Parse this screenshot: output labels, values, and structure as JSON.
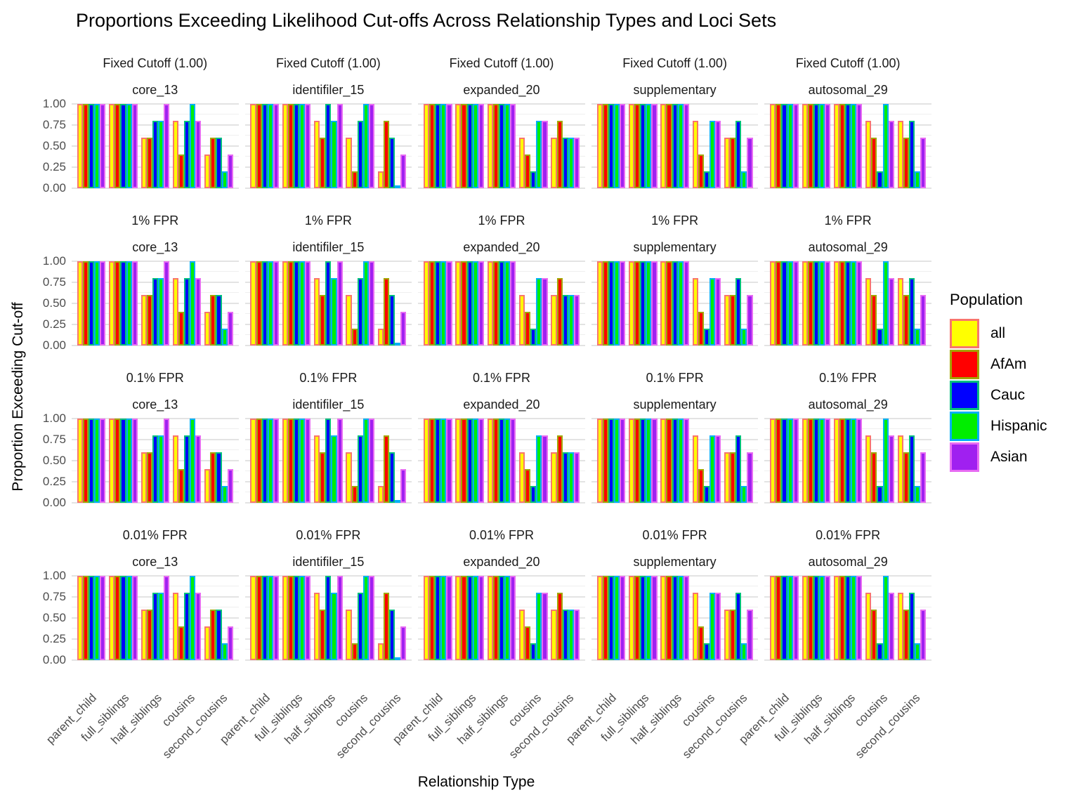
{
  "chart_data": {
    "type": "bar",
    "title": "Proportions Exceeding Likelihood Cut-offs Across Relationship Types and Loci Sets",
    "xlabel": "Relationship Type",
    "ylabel": "Proportion Exceeding Cut-off",
    "row_facets": [
      "Fixed Cutoff (1.00)",
      "1% FPR",
      "0.1% FPR",
      "0.01% FPR"
    ],
    "col_facets": [
      "core_13",
      "identifiler_15",
      "expanded_20",
      "supplementary",
      "autosomal_29"
    ],
    "categories": [
      "parent_child",
      "full_siblings",
      "half_siblings",
      "cousins",
      "second_cousins"
    ],
    "y_ticks": [
      "1.00",
      "0.75",
      "0.50",
      "0.25",
      "0.00"
    ],
    "ylim": [
      0,
      1
    ],
    "grid": {
      "major_every": 0.25,
      "minor_every": 0.125,
      "color_major": "#e3e3e3",
      "color_minor": "#efefef"
    },
    "legend": {
      "title": "Population",
      "position": "right",
      "entries": [
        {
          "label": "all",
          "fill": "#FFFF00",
          "outline": "#F8766D"
        },
        {
          "label": "AfAm",
          "fill": "#FF0000",
          "outline": "#A3A500"
        },
        {
          "label": "Cauc",
          "fill": "#0000FF",
          "outline": "#00BF7D"
        },
        {
          "label": "Hispanic",
          "fill": "#00EE00",
          "outline": "#00B0F6"
        },
        {
          "label": "Asian",
          "fill": "#A020F0",
          "outline": "#E76BF3"
        }
      ]
    },
    "rows_share_values": true,
    "values_note": "Bar heights are identical in all four cutoff rows (Fixed Cutoff, 1% FPR, 0.1% FPR, 0.01% FPR). Arrays are ordered [all, AfAm, Cauc, Hispanic, Asian].",
    "values": {
      "core_13": {
        "parent_child": [
          1.0,
          1.0,
          1.0,
          1.0,
          1.0
        ],
        "full_siblings": [
          1.0,
          1.0,
          1.0,
          1.0,
          1.0
        ],
        "half_siblings": [
          0.6,
          0.6,
          0.8,
          0.8,
          1.0
        ],
        "cousins": [
          0.8,
          0.4,
          0.8,
          1.0,
          0.8
        ],
        "second_cousins": [
          0.4,
          0.6,
          0.6,
          0.2,
          0.4
        ]
      },
      "identifiler_15": {
        "parent_child": [
          1.0,
          1.0,
          1.0,
          1.0,
          1.0
        ],
        "full_siblings": [
          1.0,
          1.0,
          1.0,
          1.0,
          1.0
        ],
        "half_siblings": [
          0.8,
          0.6,
          1.0,
          0.8,
          1.0
        ],
        "cousins": [
          0.6,
          0.2,
          0.8,
          1.0,
          1.0
        ],
        "second_cousins": [
          0.2,
          0.8,
          0.6,
          0.0,
          0.4
        ]
      },
      "expanded_20": {
        "parent_child": [
          1.0,
          1.0,
          1.0,
          1.0,
          1.0
        ],
        "full_siblings": [
          1.0,
          1.0,
          1.0,
          1.0,
          1.0
        ],
        "half_siblings": [
          1.0,
          1.0,
          1.0,
          1.0,
          1.0
        ],
        "cousins": [
          0.6,
          0.4,
          0.2,
          0.8,
          0.8
        ],
        "second_cousins": [
          0.6,
          0.8,
          0.6,
          0.6,
          0.6
        ]
      },
      "supplementary": {
        "parent_child": [
          1.0,
          1.0,
          1.0,
          1.0,
          1.0
        ],
        "full_siblings": [
          1.0,
          1.0,
          1.0,
          1.0,
          1.0
        ],
        "half_siblings": [
          1.0,
          1.0,
          1.0,
          1.0,
          1.0
        ],
        "cousins": [
          0.8,
          0.4,
          0.2,
          0.8,
          0.8
        ],
        "second_cousins": [
          0.6,
          0.6,
          0.8,
          0.2,
          0.6
        ]
      },
      "autosomal_29": {
        "parent_child": [
          1.0,
          1.0,
          1.0,
          1.0,
          1.0
        ],
        "full_siblings": [
          1.0,
          1.0,
          1.0,
          1.0,
          1.0
        ],
        "half_siblings": [
          1.0,
          1.0,
          1.0,
          1.0,
          1.0
        ],
        "cousins": [
          0.8,
          0.6,
          0.2,
          1.0,
          0.8
        ],
        "second_cousins": [
          0.8,
          0.6,
          0.8,
          0.2,
          0.6
        ]
      }
    }
  }
}
